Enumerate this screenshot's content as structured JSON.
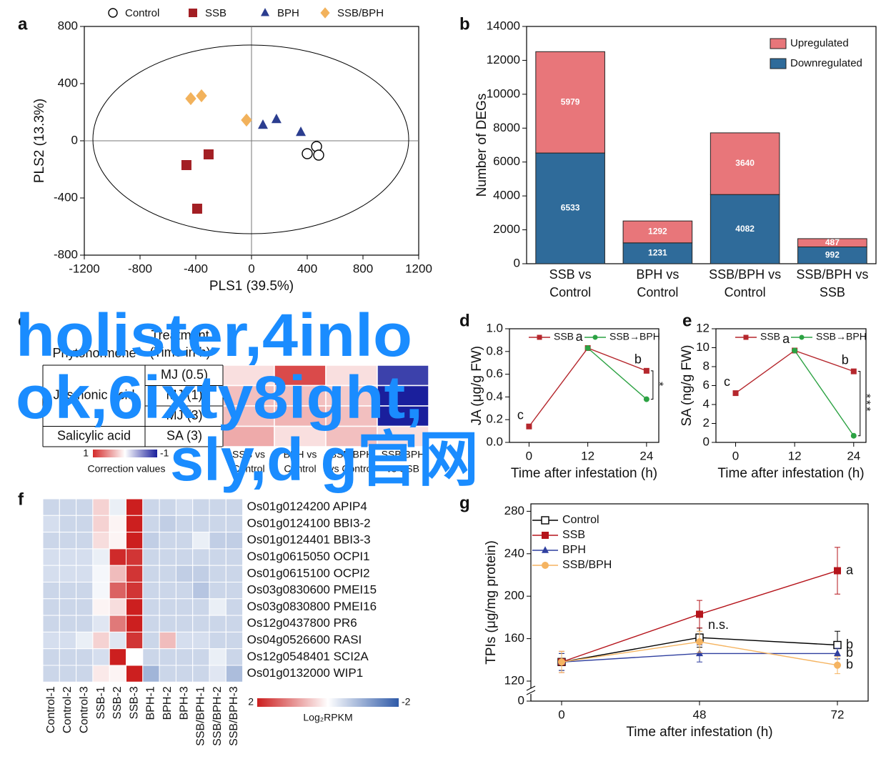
{
  "chart_data": [
    {
      "type": "scatter",
      "panel": "a",
      "xlabel": "PLS1 (39.5%)",
      "ylabel": "PLS2 (13.3%)",
      "xlim": [
        -1200,
        1200
      ],
      "ylim": [
        -800,
        800
      ],
      "xticks": [
        -1200,
        -800,
        -400,
        0,
        400,
        800,
        1200
      ],
      "yticks": [
        -800,
        -400,
        0,
        400,
        800
      ],
      "zero_lines": true,
      "series": [
        {
          "name": "Control",
          "marker": "open-circle",
          "color": "#000000",
          "x": [
            467,
            400,
            482
          ],
          "y": [
            -40,
            -90,
            -100
          ]
        },
        {
          "name": "SSB",
          "marker": "square",
          "color": "#a31f24",
          "x": [
            -308,
            -467,
            -390
          ],
          "y": [
            -95,
            -170,
            -475
          ]
        },
        {
          "name": "BPH",
          "marker": "triangle",
          "color": "#2b3d8f",
          "x": [
            82,
            179,
            354
          ],
          "y": [
            110,
            150,
            60
          ]
        },
        {
          "name": "SSB/BPH",
          "marker": "diamond",
          "color": "#f2b25c",
          "x": [
            -436,
            -359,
            -36
          ],
          "y": [
            295,
            315,
            145
          ]
        }
      ]
    },
    {
      "type": "stacked_bar",
      "panel": "b",
      "ylabel": "Number of DEGs",
      "categories": [
        [
          "SSB vs",
          "Control"
        ],
        [
          "BPH vs",
          "Control"
        ],
        [
          "SSB/BPH vs",
          "Control"
        ],
        [
          "SSB/BPH vs",
          "SSB"
        ]
      ],
      "ylim": [
        0,
        14000
      ],
      "yticks": [
        0,
        2000,
        4000,
        6000,
        8000,
        10000,
        12000,
        14000
      ],
      "series": [
        {
          "name": "Downregulated",
          "color": "#2f6b9a",
          "values": [
            6533,
            1231,
            4082,
            992
          ]
        },
        {
          "name": "Upregulated",
          "color": "#e8767a",
          "values": [
            5979,
            1292,
            3640,
            487
          ]
        }
      ]
    },
    {
      "type": "heatmap_table",
      "panel": "c",
      "row_header": "Phytohormone",
      "treatment_header": [
        "Treatment",
        "(Time in h)"
      ],
      "groups": [
        {
          "name": "Jasmonic acid",
          "treatments": [
            "MJ (0.5)",
            "MJ (1)",
            "MJ (3)"
          ]
        },
        {
          "name": "Salicylic acid",
          "treatments": [
            "SA (3)"
          ]
        }
      ],
      "columns": [
        [
          "SSB vs",
          "Control"
        ],
        [
          "BPH vs",
          "Control"
        ],
        [
          "SSB/BPH",
          "vs Control"
        ],
        [
          "SSB/BPH",
          "vs SSB"
        ]
      ],
      "values": [
        [
          0.15,
          0.85,
          0.15,
          -0.85
        ],
        [
          0.3,
          0.3,
          0.25,
          -1
        ],
        [
          0.3,
          0.35,
          0.3,
          -1
        ],
        [
          0.4,
          0.15,
          0.3,
          0.15
        ]
      ],
      "colorbar": {
        "ticks": [
          1,
          -1
        ],
        "label": "Correction values"
      },
      "colors": {
        "high": "#d42a2a",
        "low": "#1a1f9c"
      }
    },
    {
      "type": "line",
      "panel": "d",
      "ylabel": "JA (μg/g FW)",
      "xlabel": "Time after infestation (h)",
      "x": [
        0,
        12,
        24
      ],
      "xlim": [
        -4,
        26.5
      ],
      "xticks": [
        0,
        12,
        24
      ],
      "ylim": [
        0,
        1
      ],
      "yticks": [
        {
          "value": 0,
          "label": "0.0"
        },
        0.2,
        0.4,
        0.6,
        0.8,
        {
          "value": 1,
          "label": "1.0"
        }
      ],
      "legend": "top",
      "series": [
        {
          "name": "SSB",
          "color": "#b5272d",
          "marker": "square",
          "values": [
            0.14,
            0.83,
            0.63
          ],
          "point_labels": [
            "c",
            "a",
            "b"
          ]
        },
        {
          "name": "SSB→BPH",
          "color": "#2ca243",
          "marker": "circle",
          "values": [
            null,
            0.83,
            0.38
          ]
        }
      ],
      "significance": "*"
    },
    {
      "type": "line",
      "panel": "e",
      "ylabel": "SA (ng/g FW)",
      "xlabel": "Time after infestation (h)",
      "x": [
        0,
        12,
        24
      ],
      "xlim": [
        -4,
        26.5
      ],
      "xticks": [
        0,
        12,
        24
      ],
      "ylim": [
        0,
        12
      ],
      "yticks": [
        0,
        2,
        4,
        6,
        8,
        10,
        12
      ],
      "legend": "top",
      "series": [
        {
          "name": "SSB",
          "color": "#b5272d",
          "marker": "square",
          "values": [
            5.2,
            9.7,
            7.5
          ],
          "point_labels": [
            "c",
            "a",
            "b"
          ]
        },
        {
          "name": "SSB→BPH",
          "color": "#2ca243",
          "marker": "circle",
          "values": [
            null,
            9.7,
            0.7
          ]
        }
      ],
      "significance": "***"
    },
    {
      "type": "heatmap",
      "panel": "f",
      "rows": [
        "Os01g0124200 APIP4",
        "Os01g0124100 BBI3-2",
        "Os01g0124401 BBI3-3",
        "Os01g0615050 OCPI1",
        "Os01g0615100 OCPI2",
        "Os03g0830600 PMEI15",
        "Os03g0830800 PMEI16",
        "Os12g0437800 PR6",
        "Os04g0526600 RASI",
        "Os12g0548401 SCI2A",
        "Os01g0132000 WIP1"
      ],
      "columns": [
        "Control-1",
        "Control-2",
        "Control-3",
        "SSB-1",
        "SSB-2",
        "SSB-3",
        "BPH-1",
        "BPH-2",
        "BPH-3",
        "SSB/BPH-1",
        "SSB/BPH-2",
        "SSB/BPH-3"
      ],
      "values": [
        [
          -0.5,
          -0.5,
          -0.5,
          0.4,
          -0.2,
          2,
          -0.5,
          -0.5,
          -0.4,
          -0.5,
          -0.5,
          -0.5
        ],
        [
          -0.4,
          -0.5,
          -0.5,
          0.4,
          0.1,
          2,
          -0.5,
          -0.6,
          -0.5,
          -0.5,
          -0.5,
          -0.5
        ],
        [
          -0.5,
          -0.5,
          -0.5,
          0.3,
          0.1,
          2,
          -0.6,
          -0.5,
          -0.5,
          -0.2,
          -0.6,
          -0.6
        ],
        [
          -0.4,
          -0.4,
          -0.4,
          -0.2,
          1.9,
          1.8,
          -0.5,
          -0.5,
          -0.5,
          -0.5,
          -0.5,
          -0.5
        ],
        [
          -0.4,
          -0.4,
          -0.4,
          -0.1,
          0.6,
          1.8,
          -0.5,
          -0.5,
          -0.6,
          -0.6,
          -0.5,
          -0.5
        ],
        [
          -0.5,
          -0.5,
          -0.5,
          -0.1,
          1.4,
          1.8,
          -0.5,
          -0.5,
          -0.5,
          -0.7,
          -0.5,
          -0.5
        ],
        [
          -0.5,
          -0.5,
          -0.5,
          0.1,
          0.3,
          2,
          -0.5,
          -0.5,
          -0.5,
          -0.5,
          -0.2,
          -0.5
        ],
        [
          -0.5,
          -0.5,
          -0.5,
          -0.3,
          1.2,
          2,
          -0.5,
          -0.5,
          -0.5,
          -0.5,
          -0.5,
          -0.5
        ],
        [
          -0.4,
          -0.4,
          -0.2,
          0.4,
          -0.3,
          1.8,
          -0.5,
          0.6,
          -0.4,
          -0.4,
          -0.5,
          -0.5
        ],
        [
          -0.5,
          -0.5,
          -0.5,
          -0.4,
          2,
          0,
          -0.5,
          -0.5,
          -0.5,
          -0.5,
          -0.2,
          -0.5
        ],
        [
          -0.5,
          -0.5,
          -0.5,
          0.2,
          0.1,
          2,
          -0.9,
          -0.5,
          -0.5,
          -0.5,
          -0.3,
          -0.8
        ]
      ],
      "colorbar": {
        "ticks": [
          2,
          -2
        ],
        "label": "Log₂RPKM"
      },
      "colors": {
        "high": "#cc1f1f",
        "low": "#2f5aa8"
      }
    },
    {
      "type": "line",
      "panel": "g",
      "ylabel": "TPIs (μg/mg protein)",
      "xlabel": "Time after infestation (h)",
      "categories": [
        0,
        48,
        72
      ],
      "ylim": [
        0,
        287
      ],
      "ybreak": [
        0,
        120
      ],
      "yticks": [
        0,
        120,
        160,
        200,
        240,
        280
      ],
      "legend": "upper left",
      "series": [
        {
          "name": "Control",
          "color": "#000000",
          "marker": "open-square",
          "values": [
            138,
            161,
            154
          ],
          "errors": [
            8,
            9,
            13
          ],
          "point_labels": [
            null,
            "n.s.",
            "b"
          ]
        },
        {
          "name": "SSB",
          "color": "#b5141b",
          "marker": "square",
          "values": [
            138,
            183,
            224
          ],
          "errors": [
            10,
            13,
            22
          ],
          "point_labels": [
            null,
            null,
            "a"
          ]
        },
        {
          "name": "BPH",
          "color": "#2f3f9f",
          "marker": "triangle",
          "values": [
            138,
            146,
            146
          ],
          "errors": [
            8,
            8,
            5
          ],
          "point_labels": [
            null,
            null,
            "b"
          ]
        },
        {
          "name": "SSB/BPH",
          "color": "#f5b461",
          "marker": "circle",
          "values": [
            138,
            157,
            135
          ],
          "errors": [
            10,
            10,
            8
          ],
          "point_labels": [
            null,
            null,
            "b"
          ]
        }
      ]
    }
  ],
  "watermark": [
    "holister,4inlo",
    "ok,6ixty8ight,",
    "sly,d g官网"
  ]
}
